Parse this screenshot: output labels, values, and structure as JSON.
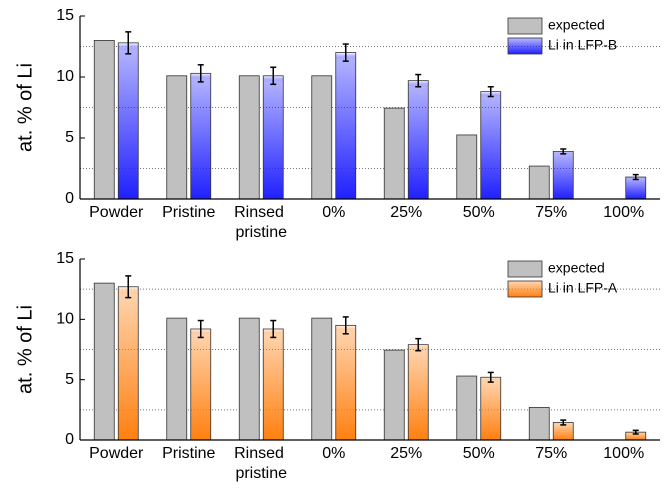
{
  "chart_data": [
    {
      "type": "bar",
      "ylabel": "at. % of Li",
      "categories": [
        "Powder",
        "Pristine",
        "Rinsed pristine",
        "0%",
        "25%",
        "50%",
        "75%",
        "100%"
      ],
      "series": [
        {
          "name": "expected",
          "color": "#c0c0c0",
          "values": [
            13,
            10.1,
            10.1,
            10.1,
            7.45,
            5.25,
            2.7,
            null
          ]
        },
        {
          "name": "Li in LFP-B",
          "color": "#2020ff",
          "values": [
            12.8,
            10.3,
            10.1,
            12.0,
            9.7,
            8.8,
            3.9,
            1.8
          ],
          "errors": [
            0.9,
            0.7,
            0.7,
            0.7,
            0.5,
            0.4,
            0.2,
            0.2
          ]
        }
      ],
      "ylim": [
        0,
        15
      ],
      "yticks": [
        0,
        5,
        10,
        15
      ],
      "grid_lines": [
        2.5,
        7.5,
        12.5
      ],
      "legend": "top-right"
    },
    {
      "type": "bar",
      "ylabel": "at. % of Li",
      "categories": [
        "Powder",
        "Pristine",
        "Rinsed pristine",
        "0%",
        "25%",
        "50%",
        "75%",
        "100%"
      ],
      "series": [
        {
          "name": "expected",
          "color": "#c0c0c0",
          "values": [
            13,
            10.1,
            10.1,
            10.1,
            7.45,
            5.3,
            2.7,
            null
          ]
        },
        {
          "name": "Li in LFP-A",
          "color": "#ff8010",
          "values": [
            12.7,
            9.2,
            9.2,
            9.5,
            7.9,
            5.2,
            1.45,
            0.65
          ],
          "errors": [
            0.9,
            0.7,
            0.7,
            0.7,
            0.5,
            0.4,
            0.2,
            0.15
          ]
        }
      ],
      "ylim": [
        0,
        15
      ],
      "yticks": [
        0,
        5,
        10,
        15
      ],
      "grid_lines": [
        2.5,
        7.5,
        12.5
      ],
      "legend": "top-right"
    }
  ]
}
